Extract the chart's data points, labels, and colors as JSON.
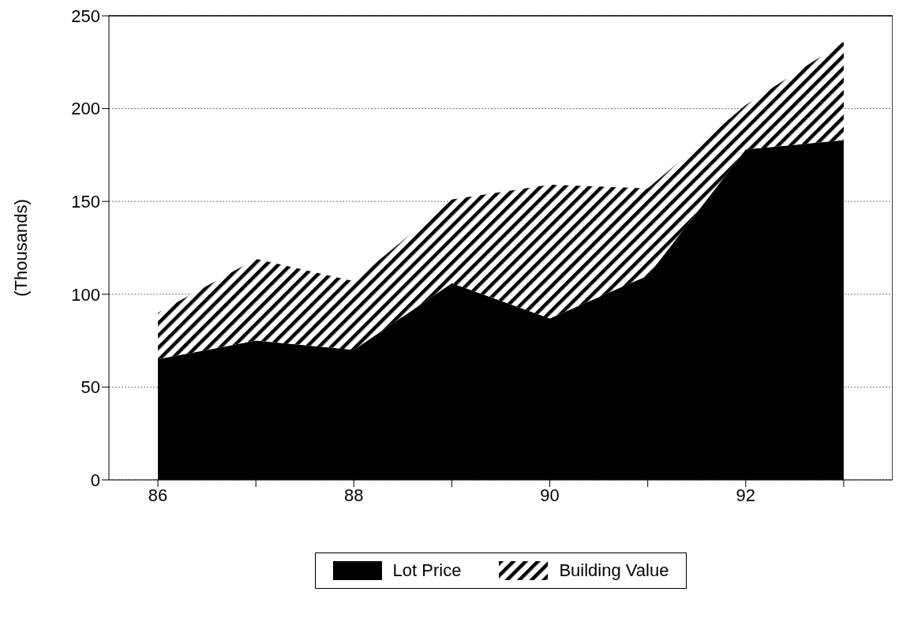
{
  "chart_data": {
    "type": "area",
    "stacked": true,
    "ylabel": "(Thousands)",
    "x": [
      86,
      87,
      88,
      89,
      90,
      91,
      92,
      93
    ],
    "xlim": [
      85.5,
      93.5
    ],
    "xticks": [
      86,
      {
        "value": 87,
        "label": null
      },
      88,
      {
        "value": 89,
        "label": null
      },
      90,
      {
        "value": 91,
        "label": null
      },
      92,
      {
        "value": 93,
        "label": null
      }
    ],
    "ylim": [
      0,
      250
    ],
    "yticks": [
      0,
      50,
      100,
      150,
      200,
      250
    ],
    "grid": "y",
    "legend": "bottom",
    "series": [
      {
        "name": "Lot Price",
        "color": "#000000",
        "values": [
          65,
          75,
          70,
          106,
          87,
          110,
          178,
          183
        ]
      },
      {
        "name": "Building Value",
        "color": "#000000",
        "values": [
          25,
          44,
          37,
          45,
          72,
          47,
          24,
          53
        ]
      }
    ]
  }
}
